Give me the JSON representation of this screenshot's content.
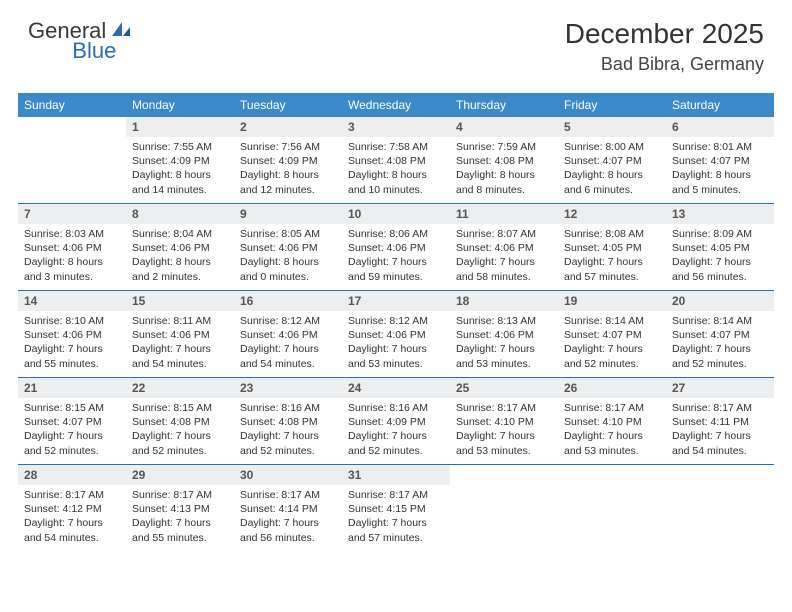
{
  "brand": {
    "part1": "General",
    "part2": "Blue"
  },
  "title": "December 2025",
  "location": "Bad Bibra, Germany",
  "colors": {
    "header_bg": "#3b89c9",
    "header_text": "#ffffff",
    "daynum_bg": "#eceeef",
    "week_border": "#2a6db8",
    "brand_blue": "#2a6db8"
  },
  "day_labels": [
    "Sunday",
    "Monday",
    "Tuesday",
    "Wednesday",
    "Thursday",
    "Friday",
    "Saturday"
  ],
  "weeks": [
    [
      {
        "day": "",
        "sunrise": "",
        "sunset": "",
        "daylight": ""
      },
      {
        "day": "1",
        "sunrise": "Sunrise: 7:55 AM",
        "sunset": "Sunset: 4:09 PM",
        "daylight": "Daylight: 8 hours and 14 minutes."
      },
      {
        "day": "2",
        "sunrise": "Sunrise: 7:56 AM",
        "sunset": "Sunset: 4:09 PM",
        "daylight": "Daylight: 8 hours and 12 minutes."
      },
      {
        "day": "3",
        "sunrise": "Sunrise: 7:58 AM",
        "sunset": "Sunset: 4:08 PM",
        "daylight": "Daylight: 8 hours and 10 minutes."
      },
      {
        "day": "4",
        "sunrise": "Sunrise: 7:59 AM",
        "sunset": "Sunset: 4:08 PM",
        "daylight": "Daylight: 8 hours and 8 minutes."
      },
      {
        "day": "5",
        "sunrise": "Sunrise: 8:00 AM",
        "sunset": "Sunset: 4:07 PM",
        "daylight": "Daylight: 8 hours and 6 minutes."
      },
      {
        "day": "6",
        "sunrise": "Sunrise: 8:01 AM",
        "sunset": "Sunset: 4:07 PM",
        "daylight": "Daylight: 8 hours and 5 minutes."
      }
    ],
    [
      {
        "day": "7",
        "sunrise": "Sunrise: 8:03 AM",
        "sunset": "Sunset: 4:06 PM",
        "daylight": "Daylight: 8 hours and 3 minutes."
      },
      {
        "day": "8",
        "sunrise": "Sunrise: 8:04 AM",
        "sunset": "Sunset: 4:06 PM",
        "daylight": "Daylight: 8 hours and 2 minutes."
      },
      {
        "day": "9",
        "sunrise": "Sunrise: 8:05 AM",
        "sunset": "Sunset: 4:06 PM",
        "daylight": "Daylight: 8 hours and 0 minutes."
      },
      {
        "day": "10",
        "sunrise": "Sunrise: 8:06 AM",
        "sunset": "Sunset: 4:06 PM",
        "daylight": "Daylight: 7 hours and 59 minutes."
      },
      {
        "day": "11",
        "sunrise": "Sunrise: 8:07 AM",
        "sunset": "Sunset: 4:06 PM",
        "daylight": "Daylight: 7 hours and 58 minutes."
      },
      {
        "day": "12",
        "sunrise": "Sunrise: 8:08 AM",
        "sunset": "Sunset: 4:05 PM",
        "daylight": "Daylight: 7 hours and 57 minutes."
      },
      {
        "day": "13",
        "sunrise": "Sunrise: 8:09 AM",
        "sunset": "Sunset: 4:05 PM",
        "daylight": "Daylight: 7 hours and 56 minutes."
      }
    ],
    [
      {
        "day": "14",
        "sunrise": "Sunrise: 8:10 AM",
        "sunset": "Sunset: 4:06 PM",
        "daylight": "Daylight: 7 hours and 55 minutes."
      },
      {
        "day": "15",
        "sunrise": "Sunrise: 8:11 AM",
        "sunset": "Sunset: 4:06 PM",
        "daylight": "Daylight: 7 hours and 54 minutes."
      },
      {
        "day": "16",
        "sunrise": "Sunrise: 8:12 AM",
        "sunset": "Sunset: 4:06 PM",
        "daylight": "Daylight: 7 hours and 54 minutes."
      },
      {
        "day": "17",
        "sunrise": "Sunrise: 8:12 AM",
        "sunset": "Sunset: 4:06 PM",
        "daylight": "Daylight: 7 hours and 53 minutes."
      },
      {
        "day": "18",
        "sunrise": "Sunrise: 8:13 AM",
        "sunset": "Sunset: 4:06 PM",
        "daylight": "Daylight: 7 hours and 53 minutes."
      },
      {
        "day": "19",
        "sunrise": "Sunrise: 8:14 AM",
        "sunset": "Sunset: 4:07 PM",
        "daylight": "Daylight: 7 hours and 52 minutes."
      },
      {
        "day": "20",
        "sunrise": "Sunrise: 8:14 AM",
        "sunset": "Sunset: 4:07 PM",
        "daylight": "Daylight: 7 hours and 52 minutes."
      }
    ],
    [
      {
        "day": "21",
        "sunrise": "Sunrise: 8:15 AM",
        "sunset": "Sunset: 4:07 PM",
        "daylight": "Daylight: 7 hours and 52 minutes."
      },
      {
        "day": "22",
        "sunrise": "Sunrise: 8:15 AM",
        "sunset": "Sunset: 4:08 PM",
        "daylight": "Daylight: 7 hours and 52 minutes."
      },
      {
        "day": "23",
        "sunrise": "Sunrise: 8:16 AM",
        "sunset": "Sunset: 4:08 PM",
        "daylight": "Daylight: 7 hours and 52 minutes."
      },
      {
        "day": "24",
        "sunrise": "Sunrise: 8:16 AM",
        "sunset": "Sunset: 4:09 PM",
        "daylight": "Daylight: 7 hours and 52 minutes."
      },
      {
        "day": "25",
        "sunrise": "Sunrise: 8:17 AM",
        "sunset": "Sunset: 4:10 PM",
        "daylight": "Daylight: 7 hours and 53 minutes."
      },
      {
        "day": "26",
        "sunrise": "Sunrise: 8:17 AM",
        "sunset": "Sunset: 4:10 PM",
        "daylight": "Daylight: 7 hours and 53 minutes."
      },
      {
        "day": "27",
        "sunrise": "Sunrise: 8:17 AM",
        "sunset": "Sunset: 4:11 PM",
        "daylight": "Daylight: 7 hours and 54 minutes."
      }
    ],
    [
      {
        "day": "28",
        "sunrise": "Sunrise: 8:17 AM",
        "sunset": "Sunset: 4:12 PM",
        "daylight": "Daylight: 7 hours and 54 minutes."
      },
      {
        "day": "29",
        "sunrise": "Sunrise: 8:17 AM",
        "sunset": "Sunset: 4:13 PM",
        "daylight": "Daylight: 7 hours and 55 minutes."
      },
      {
        "day": "30",
        "sunrise": "Sunrise: 8:17 AM",
        "sunset": "Sunset: 4:14 PM",
        "daylight": "Daylight: 7 hours and 56 minutes."
      },
      {
        "day": "31",
        "sunrise": "Sunrise: 8:17 AM",
        "sunset": "Sunset: 4:15 PM",
        "daylight": "Daylight: 7 hours and 57 minutes."
      },
      {
        "day": "",
        "sunrise": "",
        "sunset": "",
        "daylight": ""
      },
      {
        "day": "",
        "sunrise": "",
        "sunset": "",
        "daylight": ""
      },
      {
        "day": "",
        "sunrise": "",
        "sunset": "",
        "daylight": ""
      }
    ]
  ]
}
